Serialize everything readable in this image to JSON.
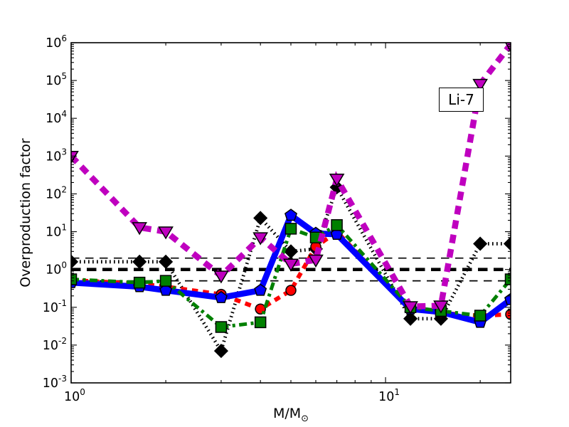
{
  "figure": {
    "annotation": "Li-7",
    "ylabel": "Overproduction factor",
    "xlabel_main": "M/M",
    "xlabel_sub": "⊙"
  },
  "chart_data": {
    "type": "line",
    "x_scale": "log",
    "y_scale": "log",
    "xlim": [
      1,
      25
    ],
    "ylim": [
      0.001,
      1000000
    ],
    "xlabel": "M/M☉",
    "ylabel": "Overproduction factor",
    "annotation": "Li-7",
    "grid": false,
    "legend": "none",
    "x_tick_exponents": [
      0,
      1
    ],
    "x_minor_ticks": [
      2,
      3,
      4,
      5,
      6,
      7,
      8,
      9,
      20
    ],
    "y_tick_exponents": [
      -3,
      -2,
      -1,
      0,
      1,
      2,
      3,
      4,
      5,
      6
    ],
    "x": [
      1.0,
      1.65,
      2.0,
      3.0,
      4.0,
      5.0,
      6.0,
      7.0,
      12.0,
      15.0,
      20.0,
      25.0
    ],
    "series": [
      {
        "name": "dotted-black-diamonds",
        "color": "#000000",
        "linestyle": "dotted",
        "marker": "diamond",
        "values": [
          1.6,
          1.6,
          1.6,
          0.007,
          23,
          3,
          3.5,
          150,
          0.05,
          0.05,
          4.8,
          4.8
        ]
      },
      {
        "name": "dashed-red-circles",
        "color": "#ff0000",
        "linestyle": "dashed-short",
        "marker": "circle",
        "values": [
          0.52,
          0.42,
          0.35,
          0.22,
          0.09,
          0.28,
          4,
          10,
          0.09,
          0.07,
          0.06,
          0.065
        ]
      },
      {
        "name": "solid-blue-pentagons",
        "color": "#0000ff",
        "linestyle": "solid",
        "marker": "pentagon",
        "values": [
          0.45,
          0.35,
          0.28,
          0.18,
          0.28,
          27,
          9,
          8.5,
          0.09,
          0.075,
          0.04,
          0.16
        ]
      },
      {
        "name": "dashdotdot-green-squares",
        "color": "#008000",
        "linestyle": "dash-dot-dot",
        "marker": "square",
        "values": [
          0.55,
          0.45,
          0.5,
          0.03,
          0.04,
          12,
          7,
          15,
          0.1,
          0.08,
          0.06,
          0.55
        ]
      },
      {
        "name": "thick-dashed-magenta-triangles",
        "color": "#bf00bf",
        "linestyle": "dashed-thick",
        "marker": "triangle-down",
        "values": [
          1000,
          13,
          10,
          0.68,
          7,
          1.4,
          1.8,
          250,
          0.105,
          0.11,
          80000,
          900000
        ]
      }
    ],
    "reference_lines": [
      {
        "y": 1.0,
        "color": "#000000",
        "style": "thick-dashed"
      },
      {
        "y": 2.0,
        "color": "#000000",
        "style": "thin-dashed"
      },
      {
        "y": 0.5,
        "color": "#000000",
        "style": "thin-dashed"
      }
    ]
  }
}
